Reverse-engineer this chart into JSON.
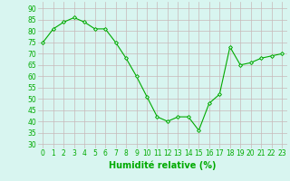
{
  "x": [
    0,
    1,
    2,
    3,
    4,
    5,
    6,
    7,
    8,
    9,
    10,
    11,
    12,
    13,
    14,
    15,
    16,
    17,
    18,
    19,
    20,
    21,
    22,
    23
  ],
  "y": [
    75,
    81,
    84,
    86,
    84,
    81,
    81,
    75,
    68,
    60,
    51,
    42,
    40,
    42,
    42,
    36,
    48,
    52,
    73,
    65,
    66,
    68,
    69,
    70
  ],
  "line_color": "#00aa00",
  "marker": "D",
  "marker_size": 2.0,
  "bg_color": "#d8f5f0",
  "grid_color": "#c8b8b8",
  "xlabel": "Humidité relative (%)",
  "xlabel_color": "#00aa00",
  "xlabel_fontsize": 7,
  "yticks": [
    30,
    35,
    40,
    45,
    50,
    55,
    60,
    65,
    70,
    75,
    80,
    85,
    90
  ],
  "ylim": [
    28,
    93
  ],
  "xlim": [
    -0.5,
    23.5
  ],
  "tick_fontsize": 5.5,
  "tick_color": "#00aa00"
}
